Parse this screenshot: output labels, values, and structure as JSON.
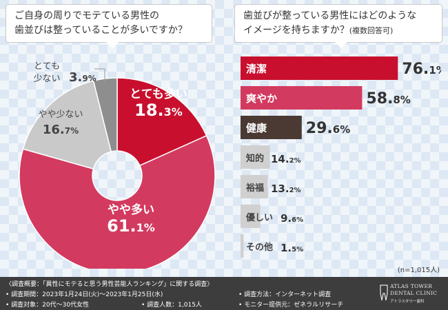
{
  "questions": {
    "left": [
      "ご自身の周りでモテている男性の",
      "歯並びは整っていることが多いですか？"
    ],
    "right_line1": "歯並びが整っている男性にはどのような",
    "right_line2": "イメージを持ちますか？",
    "right_note": "(複数回答可)"
  },
  "chart_data": [
    {
      "type": "pie",
      "donut": true,
      "categories": [
        "とても多い",
        "やや多い",
        "やや少ない",
        "とても少ない"
      ],
      "values": [
        18.3,
        61.1,
        16.7,
        3.9
      ],
      "value_suffix": "%",
      "colors": [
        "#c8102e",
        "#d33a5f",
        "#c9c9c9",
        "#8e8e8e"
      ],
      "label_lines": [
        [
          "とても多い"
        ],
        [
          "やや多い"
        ],
        [
          "やや少ない"
        ],
        [
          "とても",
          "少ない"
        ]
      ]
    },
    {
      "type": "bar",
      "orientation": "horizontal",
      "categories": [
        "清潔",
        "爽やか",
        "健康",
        "知的",
        "裕福",
        "優しい",
        "その他"
      ],
      "values": [
        76.1,
        58.8,
        29.6,
        14.2,
        13.2,
        9.6,
        1.5
      ],
      "value_suffix": "%",
      "colors": [
        "#c8102e",
        "#d33a5f",
        "#4a3a33",
        "#d0d0d0",
        "#d0d0d0",
        "#d0d0d0",
        "#d0d0d0"
      ],
      "xlim": [
        0,
        100
      ]
    }
  ],
  "sample_size": "(n=1,015人)",
  "footer": {
    "overview": "〈調査概要：「異性にモテると思う男性芸能人ランキング」に関する調査〉",
    "period": "• 調査期間：2023年1月24日(火)〜2023年1月25日(水)",
    "target": "• 調査対象：20代〜30代女性",
    "count": "• 調査人数：1,015人",
    "method": "• 調査方法：インターネット調査",
    "monitor": "• モニター提供元：ゼネラルリサーチ"
  },
  "logo": {
    "line1": "ATLAS TOWER",
    "line2": "DENTAL CLINIC",
    "line3": "アトラスタワー歯科"
  }
}
